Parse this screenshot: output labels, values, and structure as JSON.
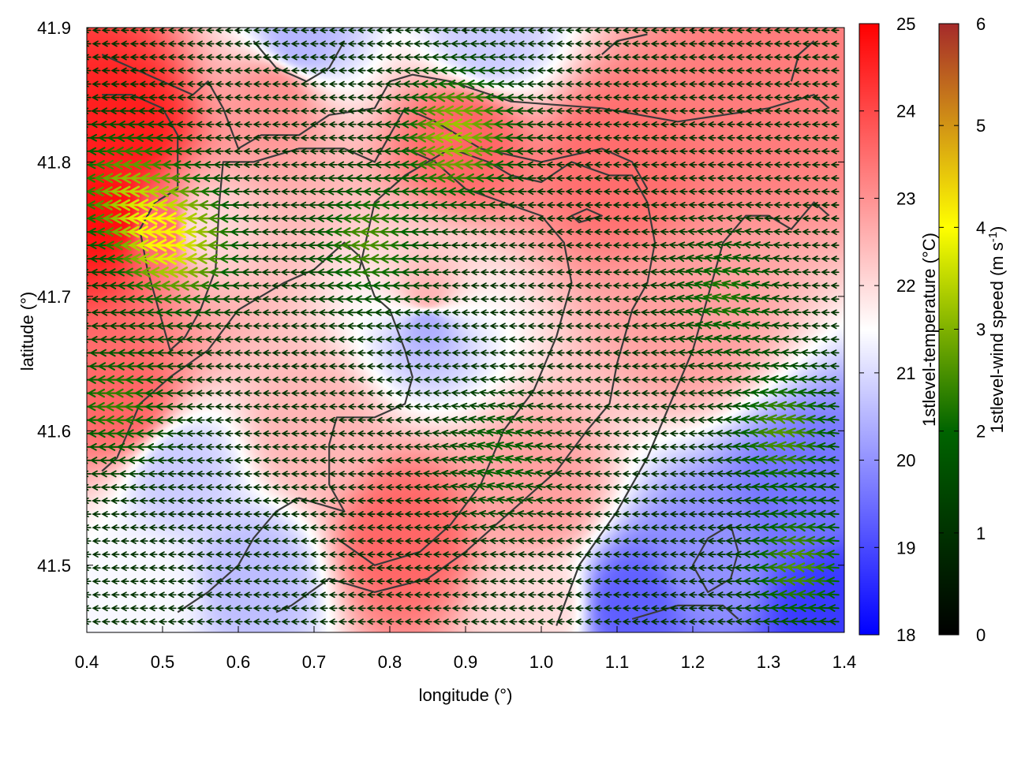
{
  "chart_data": {
    "type": "heatmap",
    "xlabel": "longitude (°)",
    "ylabel": "latitude (°)",
    "xlim": [
      0.4,
      1.4
    ],
    "ylim": [
      41.45,
      41.9
    ],
    "xticks": [
      "0.4",
      "0.5",
      "0.6",
      "0.7",
      "0.8",
      "0.9",
      "1.0",
      "1.1",
      "1.2",
      "1.3",
      "1.4"
    ],
    "yticks": [
      "41.5",
      "41.6",
      "41.7",
      "41.8",
      "41.9"
    ],
    "colorbars": [
      {
        "label": "1stlevel-temperature (°C)",
        "range": [
          18,
          25
        ],
        "ticks": [
          "18",
          "19",
          "20",
          "21",
          "22",
          "23",
          "24",
          "25"
        ],
        "colors": [
          "#0000ff",
          "#ffffff",
          "#ff0000"
        ]
      },
      {
        "label": "1stlevel-wind speed (m s",
        "label_sup": "-1",
        "label_end": ")",
        "range": [
          0,
          6
        ],
        "ticks": [
          "0",
          "1",
          "2",
          "3",
          "4",
          "5",
          "6"
        ],
        "colors": [
          "#000000",
          "#006400",
          "#ffff00",
          "#a52a2a"
        ]
      }
    ],
    "temperature_field": [
      {
        "lon": 0.45,
        "lat": 41.82,
        "t": 24.6
      },
      {
        "lon": 0.43,
        "lat": 41.76,
        "t": 24.8
      },
      {
        "lon": 0.5,
        "lat": 41.75,
        "t": 23.5
      },
      {
        "lon": 0.55,
        "lat": 41.75,
        "t": 22.0
      },
      {
        "lon": 0.45,
        "lat": 41.62,
        "t": 23.6
      },
      {
        "lon": 0.65,
        "lat": 41.85,
        "t": 23.0
      },
      {
        "lon": 0.9,
        "lat": 41.82,
        "t": 23.6
      },
      {
        "lon": 1.1,
        "lat": 41.8,
        "t": 23.5
      },
      {
        "lon": 1.3,
        "lat": 41.85,
        "t": 23.3
      },
      {
        "lon": 0.85,
        "lat": 41.7,
        "t": 22.5
      },
      {
        "lon": 0.68,
        "lat": 41.89,
        "t": 20.5
      },
      {
        "lon": 0.93,
        "lat": 41.89,
        "t": 20.8
      },
      {
        "lon": 0.52,
        "lat": 41.57,
        "t": 20.8
      },
      {
        "lon": 0.85,
        "lat": 41.68,
        "t": 20.4
      },
      {
        "lon": 0.82,
        "lat": 41.52,
        "t": 23.6
      },
      {
        "lon": 1.0,
        "lat": 41.55,
        "t": 22.8
      },
      {
        "lon": 0.7,
        "lat": 41.6,
        "t": 22.5
      },
      {
        "lon": 1.2,
        "lat": 41.68,
        "t": 22.8
      },
      {
        "lon": 1.35,
        "lat": 41.55,
        "t": 19.6
      },
      {
        "lon": 1.22,
        "lat": 41.5,
        "t": 20.0
      },
      {
        "lon": 1.12,
        "lat": 41.47,
        "t": 19.3
      },
      {
        "lon": 1.38,
        "lat": 41.47,
        "t": 18.8
      },
      {
        "lon": 0.62,
        "lat": 41.49,
        "t": 20.6
      },
      {
        "lon": 0.48,
        "lat": 41.48,
        "t": 21.4
      },
      {
        "lon": 1.0,
        "lat": 41.47,
        "t": 22.0
      }
    ],
    "wind_field": {
      "base_u": -1.0,
      "jets": [
        {
          "lon": 0.46,
          "lat": 41.78,
          "u": -1.8,
          "v": 0.0
        },
        {
          "lon": 0.53,
          "lat": 41.74,
          "u": -2.8,
          "v": 0.0
        },
        {
          "lon": 0.9,
          "lat": 41.82,
          "u": -2.3,
          "v": 0.1
        },
        {
          "lon": 0.78,
          "lat": 41.74,
          "u": -1.6,
          "v": 0.0
        },
        {
          "lon": 1.33,
          "lat": 41.6,
          "u": -1.6,
          "v": 0.4
        },
        {
          "lon": 1.35,
          "lat": 41.5,
          "u": -1.6,
          "v": 0.2
        },
        {
          "lon": 0.45,
          "lat": 41.62,
          "u": -1.4,
          "v": 0.0
        },
        {
          "lon": 1.25,
          "lat": 41.7,
          "u": -1.2,
          "v": 0.5
        },
        {
          "lon": 0.95,
          "lat": 41.58,
          "u": -1.0,
          "v": 0.5
        }
      ]
    },
    "contours": [
      [
        [
          0.42,
          41.88
        ],
        [
          0.5,
          41.86
        ],
        [
          0.54,
          41.85
        ],
        [
          0.56,
          41.86
        ],
        [
          0.58,
          41.84
        ],
        [
          0.6,
          41.81
        ],
        [
          0.63,
          41.82
        ],
        [
          0.68,
          41.82
        ],
        [
          0.72,
          41.835
        ],
        [
          0.78,
          41.84
        ],
        [
          0.8,
          41.86
        ],
        [
          0.83,
          41.865
        ],
        [
          0.88,
          41.86
        ],
        [
          0.96,
          41.845
        ],
        [
          1.08,
          41.84
        ],
        [
          1.18,
          41.83
        ],
        [
          1.3,
          41.84
        ],
        [
          1.36,
          41.85
        ],
        [
          1.38,
          41.84
        ]
      ],
      [
        [
          0.42,
          41.85
        ],
        [
          0.46,
          41.85
        ],
        [
          0.5,
          41.84
        ],
        [
          0.52,
          41.82
        ],
        [
          0.52,
          41.78
        ],
        [
          0.49,
          41.77
        ],
        [
          0.47,
          41.75
        ],
        [
          0.48,
          41.72
        ],
        [
          0.5,
          41.68
        ],
        [
          0.51,
          41.66
        ],
        [
          0.53,
          41.67
        ],
        [
          0.55,
          41.69
        ],
        [
          0.57,
          41.72
        ],
        [
          0.575,
          41.77
        ],
        [
          0.58,
          41.8
        ],
        [
          0.62,
          41.8
        ],
        [
          0.68,
          41.81
        ],
        [
          0.74,
          41.81
        ],
        [
          0.78,
          41.8
        ],
        [
          0.8,
          41.82
        ],
        [
          0.82,
          41.84
        ],
        [
          0.86,
          41.83
        ],
        [
          0.92,
          41.81
        ],
        [
          1.0,
          41.8
        ],
        [
          1.08,
          41.81
        ],
        [
          1.12,
          41.8
        ],
        [
          1.14,
          41.78
        ]
      ],
      [
        [
          0.42,
          41.57
        ],
        [
          0.44,
          41.58
        ],
        [
          0.47,
          41.62
        ],
        [
          0.51,
          41.64
        ],
        [
          0.56,
          41.66
        ],
        [
          0.6,
          41.69
        ],
        [
          0.66,
          41.71
        ],
        [
          0.7,
          41.72
        ],
        [
          0.74,
          41.74
        ],
        [
          0.76,
          41.73
        ],
        [
          0.78,
          41.7
        ],
        [
          0.8,
          41.69
        ],
        [
          0.82,
          41.66
        ],
        [
          0.83,
          41.64
        ],
        [
          0.82,
          41.62
        ],
        [
          0.78,
          41.61
        ],
        [
          0.73,
          41.61
        ],
        [
          0.72,
          41.59
        ],
        [
          0.72,
          41.56
        ],
        [
          0.74,
          41.54
        ],
        [
          0.68,
          41.55
        ],
        [
          0.65,
          41.54
        ],
        [
          0.62,
          41.52
        ],
        [
          0.6,
          41.5
        ],
        [
          0.56,
          41.48
        ],
        [
          0.52,
          41.465
        ]
      ],
      [
        [
          0.76,
          41.72
        ],
        [
          0.78,
          41.77
        ],
        [
          0.82,
          41.79
        ],
        [
          0.88,
          41.81
        ],
        [
          0.93,
          41.8
        ],
        [
          0.96,
          41.79
        ],
        [
          1.0,
          41.785
        ],
        [
          1.04,
          41.8
        ],
        [
          1.09,
          41.79
        ],
        [
          1.12,
          41.79
        ],
        [
          1.14,
          41.77
        ],
        [
          1.15,
          41.74
        ],
        [
          1.14,
          41.71
        ],
        [
          1.12,
          41.69
        ],
        [
          1.1,
          41.65
        ],
        [
          1.09,
          41.62
        ],
        [
          1.06,
          41.6
        ],
        [
          1.02,
          41.57
        ],
        [
          0.98,
          41.55
        ],
        [
          0.94,
          41.53
        ],
        [
          0.9,
          41.51
        ],
        [
          0.85,
          41.49
        ],
        [
          0.78,
          41.48
        ],
        [
          0.72,
          41.49
        ],
        [
          0.67,
          41.47
        ],
        [
          0.65,
          41.465
        ]
      ],
      [
        [
          0.73,
          41.52
        ],
        [
          0.78,
          41.5
        ],
        [
          0.84,
          41.51
        ],
        [
          0.88,
          41.53
        ],
        [
          0.92,
          41.56
        ],
        [
          0.95,
          41.6
        ],
        [
          0.99,
          41.63
        ],
        [
          1.02,
          41.67
        ],
        [
          1.04,
          41.71
        ],
        [
          1.03,
          41.74
        ],
        [
          1.0,
          41.76
        ],
        [
          0.95,
          41.77
        ],
        [
          0.9,
          41.78
        ],
        [
          0.86,
          41.8
        ],
        [
          0.82,
          41.81
        ]
      ],
      [
        [
          1.02,
          41.455
        ],
        [
          1.05,
          41.5
        ],
        [
          1.1,
          41.54
        ],
        [
          1.14,
          41.58
        ],
        [
          1.17,
          41.62
        ],
        [
          1.2,
          41.66
        ],
        [
          1.22,
          41.7
        ],
        [
          1.24,
          41.74
        ],
        [
          1.27,
          41.76
        ],
        [
          1.3,
          41.76
        ],
        [
          1.33,
          41.75
        ],
        [
          1.36,
          41.77
        ],
        [
          1.38,
          41.76
        ]
      ],
      [
        [
          1.22,
          41.52
        ],
        [
          1.25,
          41.53
        ],
        [
          1.26,
          41.51
        ],
        [
          1.25,
          41.49
        ],
        [
          1.22,
          41.48
        ],
        [
          1.2,
          41.5
        ],
        [
          1.22,
          41.52
        ]
      ],
      [
        [
          1.12,
          41.46
        ],
        [
          1.18,
          41.47
        ],
        [
          1.24,
          41.47
        ],
        [
          1.26,
          41.46
        ]
      ],
      [
        [
          0.62,
          41.89
        ],
        [
          0.65,
          41.87
        ],
        [
          0.69,
          41.86
        ],
        [
          0.72,
          41.87
        ],
        [
          0.74,
          41.89
        ]
      ],
      [
        [
          1.08,
          41.88
        ],
        [
          1.1,
          41.89
        ],
        [
          1.14,
          41.895
        ]
      ],
      [
        [
          1.36,
          41.89
        ],
        [
          1.34,
          41.88
        ],
        [
          1.33,
          41.86
        ]
      ],
      [
        [
          1.04,
          41.76
        ],
        [
          1.06,
          41.765
        ],
        [
          1.08,
          41.76
        ],
        [
          1.05,
          41.755
        ],
        [
          1.04,
          41.76
        ]
      ]
    ]
  }
}
